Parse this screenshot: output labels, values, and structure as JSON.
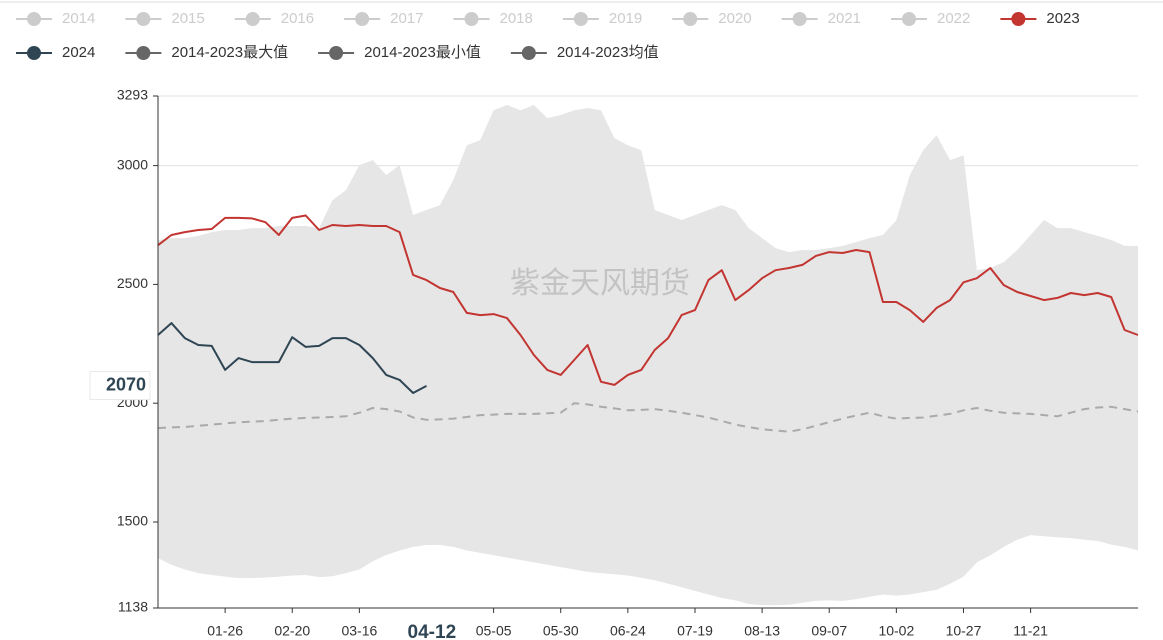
{
  "chart_data": {
    "type": "line",
    "watermark": "紫金天风期货",
    "legend_inactive": [
      "2014",
      "2015",
      "2016",
      "2017",
      "2018",
      "2019",
      "2020",
      "2021",
      "2022"
    ],
    "inactive_color": "#cccccc",
    "band_color": "#e6e6e6",
    "categories": [
      null,
      null,
      null,
      null,
      null,
      "01-26",
      null,
      null,
      null,
      null,
      "02-20",
      null,
      null,
      null,
      null,
      "03-16",
      null,
      null,
      null,
      null,
      null,
      null,
      null,
      null,
      null,
      "05-05",
      null,
      null,
      null,
      null,
      "05-30",
      null,
      null,
      null,
      null,
      "06-24",
      null,
      null,
      null,
      null,
      "07-19",
      null,
      null,
      null,
      null,
      "08-13",
      null,
      null,
      null,
      null,
      "09-07",
      null,
      null,
      null,
      null,
      "10-02",
      null,
      null,
      null,
      null,
      "10-27",
      null,
      null,
      null,
      null,
      "11-21",
      null,
      null,
      null,
      null,
      null,
      null,
      null,
      null
    ],
    "series": [
      {
        "name": "2023",
        "color": "#c23531",
        "style": "solid",
        "values": [
          2665,
          2708,
          2720,
          2729,
          2733,
          2780,
          2780,
          2778,
          2762,
          2708,
          2780,
          2790,
          2729,
          2750,
          2746,
          2750,
          2746,
          2746,
          2720,
          2540,
          2518,
          2485,
          2468,
          2380,
          2371,
          2375,
          2358,
          2287,
          2203,
          2140,
          2119,
          2182,
          2245,
          2090,
          2077,
          2119,
          2140,
          2224,
          2274,
          2371,
          2392,
          2518,
          2560,
          2434,
          2476,
          2526,
          2560,
          2569,
          2582,
          2620,
          2636,
          2632,
          2645,
          2636,
          2426,
          2426,
          2392,
          2342,
          2401,
          2434,
          2509,
          2526,
          2569,
          2497,
          2468,
          2451,
          2434,
          2443,
          2464,
          2455,
          2464,
          2447,
          2308,
          2287
        ]
      },
      {
        "name": "2024",
        "color": "#2f4554",
        "style": "solid",
        "values": [
          2287,
          2337,
          2274,
          2245,
          2241,
          2140,
          2190,
          2173,
          2173,
          2173,
          2278,
          2237,
          2241,
          2274,
          2274,
          2245,
          2190,
          2119,
          2098,
          2043,
          2073,
          null,
          null,
          null,
          null,
          null,
          null,
          null,
          null,
          null,
          null,
          null,
          null,
          null,
          null,
          null,
          null,
          null,
          null,
          null,
          null,
          null,
          null,
          null,
          null,
          null,
          null,
          null,
          null,
          null,
          null,
          null,
          null,
          null,
          null,
          null,
          null,
          null,
          null,
          null,
          null,
          null,
          null,
          null,
          null,
          null,
          null,
          null,
          null,
          null,
          null,
          null,
          null,
          null
        ]
      },
      {
        "name": "2014-2023最大值",
        "color": "#666666",
        "style": "band-upper",
        "values": [
          2687,
          2695,
          2695,
          2704,
          2720,
          2729,
          2729,
          2737,
          2737,
          2746,
          2746,
          2746,
          2737,
          2855,
          2897,
          3002,
          3023,
          2960,
          3002,
          2792,
          2813,
          2834,
          2939,
          3086,
          3107,
          3233,
          3255,
          3233,
          3255,
          3200,
          3213,
          3233,
          3242,
          3233,
          3116,
          3086,
          3065,
          2813,
          2792,
          2771,
          2792,
          2813,
          2834,
          2813,
          2737,
          2695,
          2653,
          2636,
          2645,
          2645,
          2653,
          2662,
          2678,
          2695,
          2708,
          2771,
          2960,
          3065,
          3128,
          3023,
          3044,
          2560,
          2569,
          2594,
          2645,
          2708,
          2771,
          2737,
          2737,
          2720,
          2704,
          2687,
          2662,
          2662
        ]
      },
      {
        "name": "2014-2023最小值",
        "color": "#666666",
        "style": "band-lower",
        "values": [
          1348,
          1320,
          1300,
          1285,
          1277,
          1270,
          1264,
          1264,
          1266,
          1270,
          1275,
          1277,
          1268,
          1272,
          1285,
          1300,
          1335,
          1361,
          1380,
          1395,
          1403,
          1403,
          1395,
          1380,
          1370,
          1360,
          1350,
          1340,
          1330,
          1320,
          1310,
          1300,
          1290,
          1285,
          1280,
          1275,
          1265,
          1255,
          1240,
          1225,
          1210,
          1195,
          1180,
          1170,
          1155,
          1150,
          1150,
          1152,
          1160,
          1168,
          1170,
          1168,
          1175,
          1185,
          1195,
          1190,
          1195,
          1205,
          1215,
          1240,
          1270,
          1330,
          1360,
          1395,
          1425,
          1445,
          1440,
          1435,
          1432,
          1425,
          1420,
          1405,
          1395,
          1380
        ]
      },
      {
        "name": "2014-2023均值",
        "color": "#666666",
        "line_color": "#aaaaaa",
        "style": "dashed",
        "values": [
          1895,
          1898,
          1900,
          1905,
          1910,
          1915,
          1920,
          1922,
          1925,
          1930,
          1935,
          1938,
          1940,
          1942,
          1945,
          1960,
          1980,
          1975,
          1965,
          1940,
          1930,
          1932,
          1935,
          1942,
          1950,
          1952,
          1955,
          1955,
          1955,
          1958,
          1960,
          2000,
          1995,
          1985,
          1978,
          1970,
          1972,
          1975,
          1968,
          1960,
          1950,
          1940,
          1925,
          1910,
          1900,
          1890,
          1885,
          1880,
          1890,
          1905,
          1920,
          1935,
          1948,
          1960,
          1945,
          1935,
          1938,
          1940,
          1948,
          1955,
          1970,
          1980,
          1968,
          1960,
          1957,
          1955,
          1950,
          1945,
          1960,
          1975,
          1982,
          1985,
          1975,
          1965
        ]
      }
    ],
    "ylim": [
      1138,
      3293
    ],
    "yticks": [
      1138,
      1500,
      2000,
      2500,
      3000,
      3293
    ],
    "grid": true,
    "axis_pointer": {
      "x": "04-12",
      "y": 2070
    }
  }
}
